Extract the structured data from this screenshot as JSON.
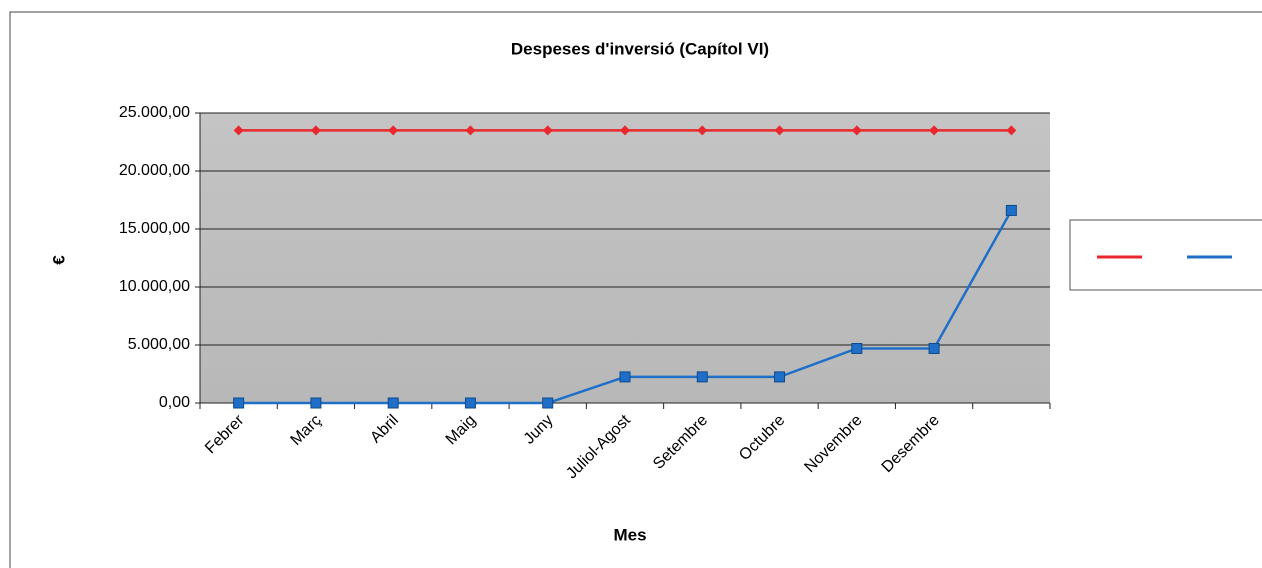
{
  "chart_data": {
    "type": "line",
    "title": "Despeses d'inversió (Capítol VI)",
    "x_label": "Mes",
    "y_label": "€",
    "categories": [
      "Febrer",
      "Març",
      "Abril",
      "Maig",
      "Juny",
      "Juliol-Agost",
      "Setembre",
      "Octubre",
      "Novembre",
      "Desembre",
      null
    ],
    "series": [
      {
        "color": "#e8282c",
        "marker": "diamond",
        "values": [
          23500,
          23500,
          23500,
          23500,
          23500,
          23500,
          23500,
          23500,
          23500,
          23500,
          23500
        ]
      },
      {
        "color": "#1f6fc8",
        "marker": "square",
        "values": [
          0,
          0,
          0,
          0,
          0,
          2250,
          2250,
          2250,
          4700,
          4700,
          16600
        ]
      }
    ],
    "ylim": [
      0,
      25000
    ],
    "yticks": [
      {
        "value": 0,
        "label": "0,00"
      },
      {
        "value": 5000,
        "label": "5.000,00"
      },
      {
        "value": 10000,
        "label": "10.000,00"
      },
      {
        "value": 15000,
        "label": "15.000,00"
      },
      {
        "value": 20000,
        "label": "20.000,00"
      },
      {
        "value": 25000,
        "label": "25.000,00"
      }
    ],
    "grid": true,
    "legend": "right"
  }
}
